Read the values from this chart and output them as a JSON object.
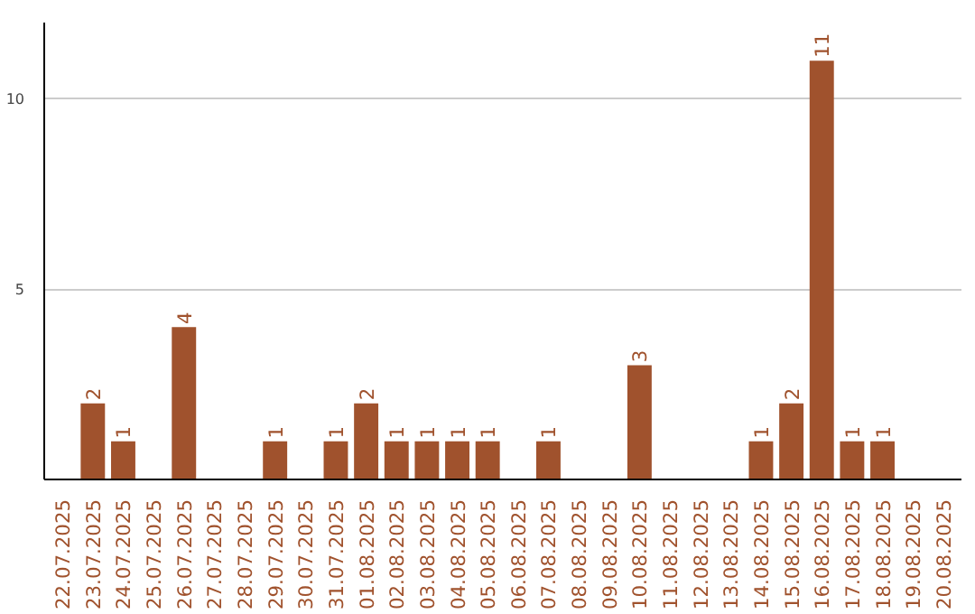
{
  "chart_data": {
    "type": "bar",
    "categories": [
      "22.07.2025",
      "23.07.2025",
      "24.07.2025",
      "25.07.2025",
      "26.07.2025",
      "27.07.2025",
      "28.07.2025",
      "29.07.2025",
      "30.07.2025",
      "31.07.2025",
      "01.08.2025",
      "02.08.2025",
      "03.08.2025",
      "04.08.2025",
      "05.08.2025",
      "06.08.2025",
      "07.08.2025",
      "08.08.2025",
      "09.08.2025",
      "10.08.2025",
      "11.08.2025",
      "12.08.2025",
      "13.08.2025",
      "14.08.2025",
      "15.08.2025",
      "16.08.2025",
      "17.08.2025",
      "18.08.2025",
      "19.08.2025",
      "20.08.2025"
    ],
    "values": [
      0,
      2,
      1,
      0,
      4,
      0,
      0,
      1,
      0,
      1,
      2,
      1,
      1,
      1,
      1,
      0,
      1,
      0,
      0,
      3,
      0,
      0,
      0,
      1,
      2,
      11,
      1,
      1,
      0,
      0
    ],
    "value_labels": [
      null,
      "2",
      "1",
      null,
      "4",
      null,
      null,
      "1",
      null,
      "1",
      "2",
      "1",
      "1",
      "1",
      "1",
      null,
      "1",
      null,
      null,
      "3",
      null,
      null,
      null,
      "1",
      "2",
      "11",
      "1",
      "1",
      null,
      null
    ],
    "color": "#a0522d",
    "ylim": [
      0,
      12
    ],
    "yticks": [
      5,
      10
    ],
    "grid": "y"
  }
}
